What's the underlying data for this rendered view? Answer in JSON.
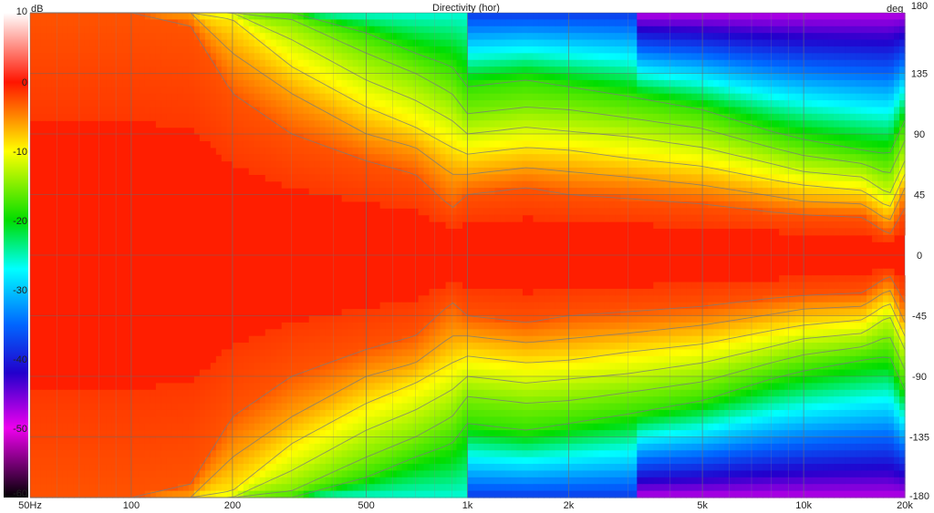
{
  "chart_data": {
    "type": "heatmap",
    "title": "Directivity (hor)",
    "xlabel": "",
    "ylabel": "deg",
    "x_scale": "log",
    "xlim": [
      50,
      20000
    ],
    "ylim": [
      -180,
      180
    ],
    "x_ticks": [
      {
        "value": 50,
        "label": "50Hz"
      },
      {
        "value": 100,
        "label": "100"
      },
      {
        "value": 200,
        "label": "200"
      },
      {
        "value": 500,
        "label": "500"
      },
      {
        "value": 1000,
        "label": "1k"
      },
      {
        "value": 2000,
        "label": "2k"
      },
      {
        "value": 5000,
        "label": "5k"
      },
      {
        "value": 10000,
        "label": "10k"
      },
      {
        "value": 20000,
        "label": "20k"
      }
    ],
    "y_ticks": [
      "180",
      "135",
      "90",
      "45",
      "0",
      "-45",
      "-90",
      "-135",
      "-180"
    ],
    "y_tick_values": [
      180,
      135,
      90,
      45,
      0,
      -45,
      -90,
      -135,
      -180
    ],
    "grid": true,
    "colorbar": {
      "unit": "dB",
      "range": [
        -60,
        10
      ],
      "tick_labels": [
        "10",
        "0",
        "-10",
        "-20",
        "-30",
        "-40",
        "-50",
        "-60"
      ],
      "tick_values": [
        10,
        0,
        -10,
        -20,
        -30,
        -40,
        -50,
        -60
      ],
      "stops": [
        {
          "db": 10,
          "color": "#ffffff"
        },
        {
          "db": 0,
          "color": "#ff1500"
        },
        {
          "db": -5,
          "color": "#ff8800"
        },
        {
          "db": -10,
          "color": "#ffff00"
        },
        {
          "db": -20,
          "color": "#00dd00"
        },
        {
          "db": -27,
          "color": "#00ffff"
        },
        {
          "db": -35,
          "color": "#0066ff"
        },
        {
          "db": -42,
          "color": "#2200cc"
        },
        {
          "db": -50,
          "color": "#ee00ee"
        },
        {
          "db": -60,
          "color": "#000000"
        }
      ]
    },
    "contour_step_db": 3,
    "half_width_contours": {
      "note_levels_db": [
        -3,
        -6,
        -9,
        -12,
        -15,
        -18
      ],
      "frequencies_hz": [
        50,
        100,
        150,
        200,
        300,
        500,
        700,
        900,
        1000,
        1500,
        2000,
        3000,
        5000,
        8000,
        10000,
        15000,
        18000,
        20000
      ],
      "angles_deg": [
        [
          180,
          180,
          180,
          180,
          180,
          180
        ],
        [
          180,
          180,
          180,
          180,
          180,
          180
        ],
        [
          170,
          180,
          180,
          180,
          180,
          180
        ],
        [
          120,
          150,
          175,
          180,
          180,
          180
        ],
        [
          90,
          120,
          140,
          160,
          175,
          180
        ],
        [
          70,
          90,
          110,
          130,
          150,
          165
        ],
        [
          60,
          80,
          95,
          115,
          135,
          150
        ],
        [
          35,
          60,
          80,
          100,
          120,
          140
        ],
        [
          45,
          60,
          75,
          90,
          105,
          125
        ],
        [
          50,
          65,
          80,
          95,
          110,
          130
        ],
        [
          45,
          62,
          78,
          92,
          108,
          125
        ],
        [
          42,
          58,
          72,
          88,
          102,
          118
        ],
        [
          38,
          52,
          66,
          80,
          94,
          108
        ],
        [
          32,
          44,
          56,
          68,
          80,
          92
        ],
        [
          30,
          40,
          52,
          62,
          74,
          86
        ],
        [
          28,
          38,
          48,
          58,
          68,
          78
        ],
        [
          15,
          25,
          35,
          45,
          60,
          75
        ],
        [
          35,
          50,
          60,
          70,
          85,
          100
        ]
      ]
    }
  }
}
